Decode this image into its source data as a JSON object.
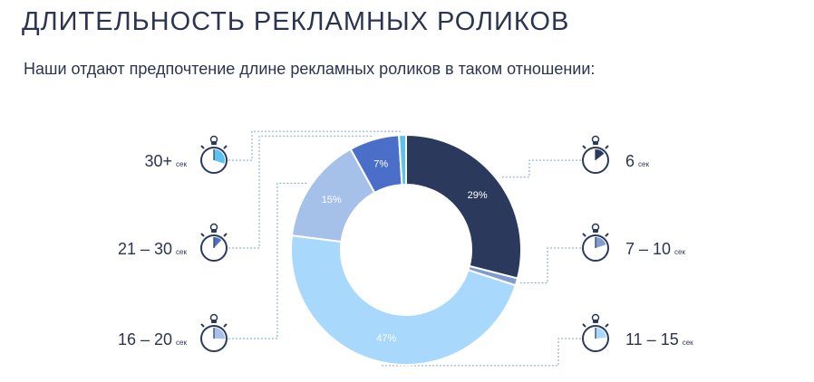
{
  "header": {
    "title": "ДЛИТЕЛЬНОСТЬ РЕКЛАМНЫХ РОЛИКОВ",
    "subtitle": "Наши отдают предпочтение длине рекламных роликов в таком отношении:"
  },
  "chart_data": {
    "type": "pie",
    "variant": "donut",
    "unit_label": "сек",
    "slices": [
      {
        "category": "6",
        "value": 29,
        "label": "29%",
        "color": "#2b3a5c",
        "label_color": "#ffffff",
        "side": "right"
      },
      {
        "category": "7 – 10",
        "value": 1,
        "label": "",
        "color": "#7f9bd0",
        "label_color": "#ffffff",
        "side": "right"
      },
      {
        "category": "11 – 15",
        "value": 47,
        "label": "47%",
        "color": "#a8d8fb",
        "label_color": "#ffffff",
        "side": "right"
      },
      {
        "category": "16 – 20",
        "value": 15,
        "label": "15%",
        "color": "#a5c1ea",
        "label_color": "#ffffff",
        "side": "left"
      },
      {
        "category": "21 – 30",
        "value": 7,
        "label": "7%",
        "color": "#4b6fc9",
        "label_color": "#ffffff",
        "side": "left"
      },
      {
        "category": "30+",
        "value": 1,
        "label": "",
        "color": "#5cc2ef",
        "label_color": "#ffffff",
        "side": "left"
      }
    ],
    "legend_icon": "stopwatch-icon"
  }
}
